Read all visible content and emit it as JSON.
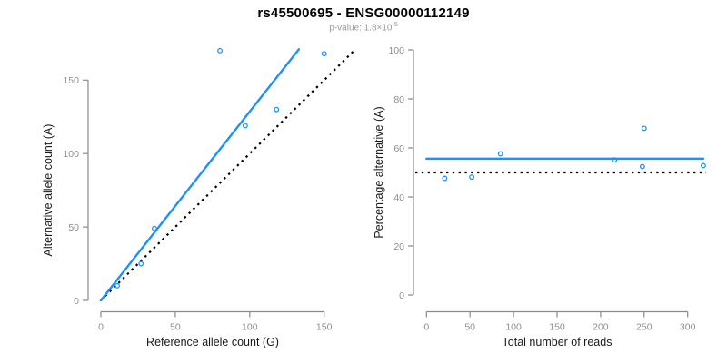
{
  "header": {
    "title": "rs45500695 - ENSG00000112149",
    "subtitle_prefix": "p-value: 1.8×10",
    "subtitle_exponent": "-5"
  },
  "colors": {
    "accent_blue": "#1E90FF",
    "axis_line": "#8a8a8a",
    "tick_label": "#8e8e8e",
    "axis_title": "#1a1a1a",
    "reference_line": "#000000",
    "title_text": "#000000",
    "subtitle_text": "#9b9b9b"
  },
  "chart_data": [
    {
      "type": "scatter",
      "panel": "left",
      "xlabel": "Reference allele count (G)",
      "ylabel": "Alternative allele count (A)",
      "xlim": [
        0,
        170
      ],
      "ylim": [
        0,
        175
      ],
      "xticks": [
        0,
        50,
        100,
        150
      ],
      "yticks": [
        0,
        50,
        100,
        150
      ],
      "grid": false,
      "points": [
        [
          11,
          10
        ],
        [
          27,
          25
        ],
        [
          36,
          49
        ],
        [
          80,
          170
        ],
        [
          97,
          119
        ],
        [
          118,
          130
        ],
        [
          150,
          168
        ]
      ],
      "fit_line": {
        "style": "solid",
        "color": "blue",
        "x": [
          0,
          133
        ],
        "y": [
          0,
          171
        ]
      },
      "reference_line": {
        "style": "dotted",
        "color": "black",
        "x": [
          0,
          170
        ],
        "y": [
          0,
          170
        ]
      }
    },
    {
      "type": "scatter",
      "panel": "right",
      "xlabel": "Total number of reads",
      "ylabel": "Percentage alternative (A)",
      "xlim": [
        0,
        320
      ],
      "ylim": [
        0,
        100
      ],
      "xticks": [
        0,
        50,
        100,
        150,
        200,
        250,
        300
      ],
      "yticks": [
        0,
        20,
        40,
        60,
        80,
        100
      ],
      "grid": false,
      "points": [
        [
          21,
          47.6
        ],
        [
          52,
          48.1
        ],
        [
          85,
          57.6
        ],
        [
          216,
          55.1
        ],
        [
          248,
          52.4
        ],
        [
          250,
          68.0
        ],
        [
          318,
          52.8
        ]
      ],
      "fit_line": {
        "style": "solid",
        "color": "blue",
        "x": [
          0,
          318
        ],
        "y": [
          55.6,
          55.6
        ]
      },
      "reference_line": {
        "style": "dotted",
        "color": "black",
        "y": 50,
        "full_width": true
      }
    }
  ]
}
